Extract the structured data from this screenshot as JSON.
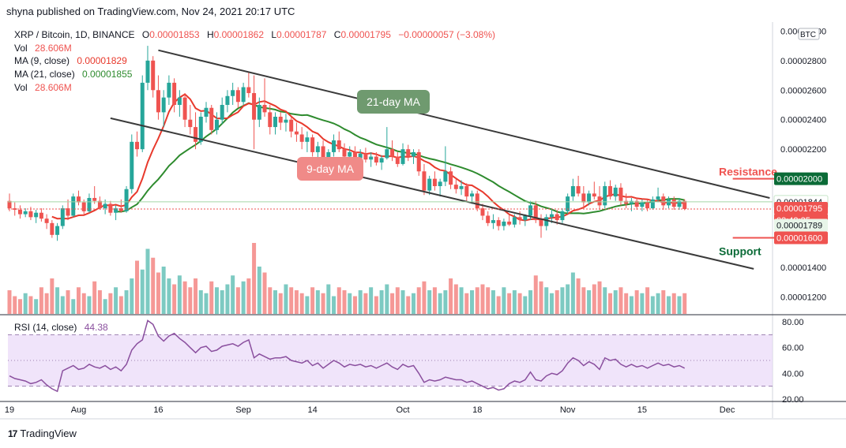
{
  "header": {
    "published": "shyna published on TradingView.com, Nov 24, 2021 20:17 UTC"
  },
  "legend": {
    "symbol": "XRP / Bitcoin, 1D, BINANCE",
    "ohlc": [
      {
        "k": "O",
        "v": "0.00001853"
      },
      {
        "k": "H",
        "v": "0.00001862"
      },
      {
        "k": "L",
        "v": "0.00001787"
      },
      {
        "k": "C",
        "v": "0.00001795"
      }
    ],
    "change": "−0.00000057 (−3.08%)",
    "vol_label": "Vol",
    "vol_value": "28.606M",
    "ma9_label": "MA (9, close)",
    "ma9_value": "0.00001829",
    "ma21_label": "MA (21, close)",
    "ma21_value": "0.00001855",
    "vol2_label": "Vol",
    "vol2_value": "28.606M",
    "rsi_label": "RSI (14, close)",
    "rsi_value": "44.38"
  },
  "annotations": {
    "ma21_callout": "21-day MA",
    "ma9_callout": "9-day MA",
    "resistance": "Resistance",
    "support": "Support"
  },
  "footer": {
    "brand": "TradingView"
  },
  "colors": {
    "up": "#26a69a",
    "down": "#ef5350",
    "ma9": "#e8392c",
    "ma21": "#2e8b2e",
    "rsi": "#8a4f9e",
    "rsi_band": "#e9d8f8",
    "trend": "#3a3a3a",
    "ma21_box": "#6f9a6f",
    "ma9_box": "#f08a88"
  },
  "chart_data": {
    "type": "candlestick",
    "currency": "BTC",
    "price_ticks": [
      "0.00001200",
      "0.00001400",
      "0.00001600",
      "0.00001800",
      "0.00002000",
      "0.00002200",
      "0.00002400",
      "0.00002600",
      "0.00002800",
      "0.00003000"
    ],
    "ylim": [
      1.085e-05,
      3.05e-05
    ],
    "rsi_ticks": [
      "20.00",
      "40.00",
      "60.00",
      "80.00"
    ],
    "rsi_band": [
      30,
      70
    ],
    "x_ticks": [
      {
        "day": 0,
        "label": "19"
      },
      {
        "day": 13,
        "label": "Aug"
      },
      {
        "day": 28,
        "label": "16"
      },
      {
        "day": 44,
        "label": "Sep"
      },
      {
        "day": 57,
        "label": "14"
      },
      {
        "day": 74,
        "label": "Oct"
      },
      {
        "day": 88,
        "label": "18"
      },
      {
        "day": 105,
        "label": "Nov"
      },
      {
        "day": 119,
        "label": "15"
      },
      {
        "day": 135,
        "label": "Dec"
      }
    ],
    "price_labels": [
      {
        "value": "0.00002000",
        "price": 2e-05,
        "color": "#0b6b37"
      },
      {
        "value": "0.00001844",
        "price": 1.844e-05,
        "color": "#ffffff",
        "text": "#131722"
      },
      {
        "value": "0.00001795",
        "price": 1.795e-05,
        "color": "#ef5350"
      },
      {
        "value": "03:42:35",
        "price": 1.735e-05,
        "color": "#ef5350"
      },
      {
        "value": "0.00001789",
        "price": 1.675e-05,
        "color": "#e8f5e9",
        "text": "#131722"
      },
      {
        "value": "0.00001600",
        "price": 1.6e-05,
        "color": "#ef5350"
      }
    ],
    "candles": [
      [
        1.85e-05,
        1.9e-05,
        1.78e-05,
        1.8e-05
      ],
      [
        1.8e-05,
        1.84e-05,
        1.75e-05,
        1.79e-05
      ],
      [
        1.79e-05,
        1.82e-05,
        1.73e-05,
        1.76e-05
      ],
      [
        1.76e-05,
        1.8e-05,
        1.74e-05,
        1.78e-05
      ],
      [
        1.78e-05,
        1.81e-05,
        1.72e-05,
        1.74e-05
      ],
      [
        1.74e-05,
        1.79e-05,
        1.7e-05,
        1.77e-05
      ],
      [
        1.77e-05,
        1.8e-05,
        1.71e-05,
        1.73e-05
      ],
      [
        1.73e-05,
        1.76e-05,
        1.66e-05,
        1.7e-05
      ],
      [
        1.7e-05,
        1.72e-05,
        1.6e-05,
        1.62e-05
      ],
      [
        1.62e-05,
        1.7e-05,
        1.58e-05,
        1.68e-05
      ],
      [
        1.68e-05,
        1.82e-05,
        1.66e-05,
        1.8e-05
      ],
      [
        1.8e-05,
        1.86e-05,
        1.72e-05,
        1.75e-05
      ],
      [
        1.75e-05,
        1.9e-05,
        1.74e-05,
        1.88e-05
      ],
      [
        1.88e-05,
        1.92e-05,
        1.82e-05,
        1.84e-05
      ],
      [
        1.84e-05,
        1.86e-05,
        1.76e-05,
        1.78e-05
      ],
      [
        1.78e-05,
        1.9e-05,
        1.77e-05,
        1.87e-05
      ],
      [
        1.87e-05,
        1.95e-05,
        1.83e-05,
        1.85e-05
      ],
      [
        1.85e-05,
        1.88e-05,
        1.79e-05,
        1.8e-05
      ],
      [
        1.8e-05,
        1.86e-05,
        1.76e-05,
        1.83e-05
      ],
      [
        1.83e-05,
        1.85e-05,
        1.75e-05,
        1.77e-05
      ],
      [
        1.77e-05,
        1.82e-05,
        1.72e-05,
        1.8e-05
      ],
      [
        1.8e-05,
        1.86e-05,
        1.77e-05,
        1.78e-05
      ],
      [
        1.78e-05,
        1.95e-05,
        1.77e-05,
        1.93e-05
      ],
      [
        1.93e-05,
        2.3e-05,
        1.9e-05,
        2.25e-05
      ],
      [
        2.25e-05,
        2.32e-05,
        2.15e-05,
        2.2e-05
      ],
      [
        2.2e-05,
        2.7e-05,
        2.18e-05,
        2.65e-05
      ],
      [
        2.65e-05,
        2.9e-05,
        2.6e-05,
        2.8e-05
      ],
      [
        2.8e-05,
        2.83e-05,
        2.55e-05,
        2.6e-05
      ],
      [
        2.6e-05,
        2.7e-05,
        2.4e-05,
        2.45e-05
      ],
      [
        2.45e-05,
        2.6e-05,
        2.35e-05,
        2.55e-05
      ],
      [
        2.55e-05,
        2.7e-05,
        2.5e-05,
        2.65e-05
      ],
      [
        2.65e-05,
        2.68e-05,
        2.45e-05,
        2.5e-05
      ],
      [
        2.5e-05,
        2.6e-05,
        2.42e-05,
        2.55e-05
      ],
      [
        2.55e-05,
        2.58e-05,
        2.35e-05,
        2.4e-05
      ],
      [
        2.4e-05,
        2.5e-05,
        2.3e-05,
        2.35e-05
      ],
      [
        2.35e-05,
        2.45e-05,
        2.2e-05,
        2.25e-05
      ],
      [
        2.25e-05,
        2.45e-05,
        2.23e-05,
        2.42e-05
      ],
      [
        2.42e-05,
        2.52e-05,
        2.38e-05,
        2.48e-05
      ],
      [
        2.48e-05,
        2.5e-05,
        2.3e-05,
        2.33e-05
      ],
      [
        2.33e-05,
        2.45e-05,
        2.3e-05,
        2.4e-05
      ],
      [
        2.4e-05,
        2.55e-05,
        2.37e-05,
        2.5e-05
      ],
      [
        2.5e-05,
        2.6e-05,
        2.45e-05,
        2.56e-05
      ],
      [
        2.56e-05,
        2.65e-05,
        2.5e-05,
        2.6e-05
      ],
      [
        2.6e-05,
        2.62e-05,
        2.48e-05,
        2.52e-05
      ],
      [
        2.52e-05,
        2.65e-05,
        2.5e-05,
        2.62e-05
      ],
      [
        2.62e-05,
        2.72e-05,
        2.55e-05,
        2.58e-05
      ],
      [
        2.58e-05,
        2.7e-05,
        2.2e-05,
        2.4e-05
      ],
      [
        2.4e-05,
        2.55e-05,
        2.35e-05,
        2.5e-05
      ],
      [
        2.5e-05,
        2.68e-05,
        2.42e-05,
        2.45e-05
      ],
      [
        2.45e-05,
        2.5e-05,
        2.3e-05,
        2.35e-05
      ],
      [
        2.35e-05,
        2.45e-05,
        2.3e-05,
        2.42e-05
      ],
      [
        2.42e-05,
        2.45e-05,
        2.33e-05,
        2.38e-05
      ],
      [
        2.38e-05,
        2.44e-05,
        2.32e-05,
        2.4e-05
      ],
      [
        2.4e-05,
        2.42e-05,
        2.28e-05,
        2.32e-05
      ],
      [
        2.32e-05,
        2.38e-05,
        2.25e-05,
        2.3e-05
      ],
      [
        2.3e-05,
        2.35e-05,
        2.2e-05,
        2.25e-05
      ],
      [
        2.25e-05,
        2.32e-05,
        2.18e-05,
        2.28e-05
      ],
      [
        2.28e-05,
        2.3e-05,
        2.15e-05,
        2.18e-05
      ],
      [
        2.18e-05,
        2.25e-05,
        2.12e-05,
        2.22e-05
      ],
      [
        2.22e-05,
        2.26e-05,
        2.08e-05,
        2.1e-05
      ],
      [
        2.1e-05,
        2.2e-05,
        2.06e-05,
        2.18e-05
      ],
      [
        2.18e-05,
        2.3e-05,
        2.15e-05,
        2.26e-05
      ],
      [
        2.26e-05,
        2.32e-05,
        2.18e-05,
        2.2e-05
      ],
      [
        2.2e-05,
        2.24e-05,
        2.12e-05,
        2.15e-05
      ],
      [
        2.15e-05,
        2.22e-05,
        2.1e-05,
        2.18e-05
      ],
      [
        2.18e-05,
        2.22e-05,
        2.12e-05,
        2.14e-05
      ],
      [
        2.14e-05,
        2.2e-05,
        2.1e-05,
        2.17e-05
      ],
      [
        2.17e-05,
        2.21e-05,
        2.11e-05,
        2.13e-05
      ],
      [
        2.13e-05,
        2.18e-05,
        2.08e-05,
        2.15e-05
      ],
      [
        2.15e-05,
        2.18e-05,
        2.09e-05,
        2.11e-05
      ],
      [
        2.11e-05,
        2.16e-05,
        2.06e-05,
        2.14e-05
      ],
      [
        2.14e-05,
        2.35e-05,
        2.13e-05,
        2.2e-05
      ],
      [
        2.2e-05,
        2.26e-05,
        2.12e-05,
        2.15e-05
      ],
      [
        2.15e-05,
        2.18e-05,
        2.08e-05,
        2.1e-05
      ],
      [
        2.1e-05,
        2.24e-05,
        2.09e-05,
        2.2e-05
      ],
      [
        2.2e-05,
        2.23e-05,
        2.12e-05,
        2.15e-05
      ],
      [
        2.15e-05,
        2.2e-05,
        2.1e-05,
        2.18e-05
      ],
      [
        2.18e-05,
        2.2e-05,
        2.02e-05,
        2.05e-05
      ],
      [
        2.05e-05,
        2.1e-05,
        1.89e-05,
        1.92e-05
      ],
      [
        1.92e-05,
        2.02e-05,
        1.89e-05,
        2e-05
      ],
      [
        2e-05,
        2.05e-05,
        1.92e-05,
        1.95e-05
      ],
      [
        1.95e-05,
        2e-05,
        1.88e-05,
        1.98e-05
      ],
      [
        1.98e-05,
        2.22e-05,
        1.95e-05,
        2.05e-05
      ],
      [
        2.05e-05,
        2.08e-05,
        1.93e-05,
        1.96e-05
      ],
      [
        1.96e-05,
        2e-05,
        1.9e-05,
        1.93e-05
      ],
      [
        1.93e-05,
        1.99e-05,
        1.89e-05,
        1.95e-05
      ],
      [
        1.95e-05,
        1.97e-05,
        1.85e-05,
        1.88e-05
      ],
      [
        1.88e-05,
        1.92e-05,
        1.83e-05,
        1.9e-05
      ],
      [
        1.9e-05,
        1.92e-05,
        1.78e-05,
        1.8e-05
      ],
      [
        1.8e-05,
        1.83e-05,
        1.72e-05,
        1.75e-05
      ],
      [
        1.75e-05,
        1.78e-05,
        1.68e-05,
        1.7e-05
      ],
      [
        1.7e-05,
        1.76e-05,
        1.66e-05,
        1.72e-05
      ],
      [
        1.72e-05,
        1.74e-05,
        1.65e-05,
        1.68e-05
      ],
      [
        1.68e-05,
        1.73e-05,
        1.65e-05,
        1.71e-05
      ],
      [
        1.71e-05,
        1.76e-05,
        1.68e-05,
        1.69e-05
      ],
      [
        1.69e-05,
        1.76e-05,
        1.67e-05,
        1.74e-05
      ],
      [
        1.74e-05,
        1.78e-05,
        1.69e-05,
        1.72e-05
      ],
      [
        1.72e-05,
        1.76e-05,
        1.68e-05,
        1.75e-05
      ],
      [
        1.75e-05,
        1.85e-05,
        1.72e-05,
        1.82e-05
      ],
      [
        1.82e-05,
        1.85e-05,
        1.7e-05,
        1.72e-05
      ],
      [
        1.72e-05,
        1.76e-05,
        1.6e-05,
        1.68e-05
      ],
      [
        1.68e-05,
        1.76e-05,
        1.65e-05,
        1.74e-05
      ],
      [
        1.74e-05,
        1.8e-05,
        1.7e-05,
        1.76e-05
      ],
      [
        1.76e-05,
        1.79e-05,
        1.69e-05,
        1.72e-05
      ],
      [
        1.72e-05,
        1.8e-05,
        1.7e-05,
        1.78e-05
      ],
      [
        1.78e-05,
        1.9e-05,
        1.76e-05,
        1.88e-05
      ],
      [
        1.88e-05,
        2e-05,
        1.85e-05,
        1.95e-05
      ],
      [
        1.95e-05,
        2.02e-05,
        1.88e-05,
        1.9e-05
      ],
      [
        1.9e-05,
        1.95e-05,
        1.8e-05,
        1.84e-05
      ],
      [
        1.84e-05,
        1.92e-05,
        1.82e-05,
        1.9e-05
      ],
      [
        1.9e-05,
        1.98e-05,
        1.86e-05,
        1.88e-05
      ],
      [
        1.88e-05,
        1.95e-05,
        1.79e-05,
        1.82e-05
      ],
      [
        1.82e-05,
        1.98e-05,
        1.8e-05,
        1.95e-05
      ],
      [
        1.95e-05,
        1.99e-05,
        1.86e-05,
        1.88e-05
      ],
      [
        1.88e-05,
        1.96e-05,
        1.85e-05,
        1.94e-05
      ],
      [
        1.94e-05,
        1.97e-05,
        1.82e-05,
        1.85e-05
      ],
      [
        1.85e-05,
        1.9e-05,
        1.8e-05,
        1.83e-05
      ],
      [
        1.83e-05,
        1.87e-05,
        1.78e-05,
        1.85e-05
      ],
      [
        1.85e-05,
        1.87e-05,
        1.79e-05,
        1.81e-05
      ],
      [
        1.81e-05,
        1.86e-05,
        1.78e-05,
        1.84e-05
      ],
      [
        1.84e-05,
        1.86e-05,
        1.78e-05,
        1.8e-05
      ],
      [
        1.8e-05,
        1.88e-05,
        1.79e-05,
        1.86e-05
      ],
      [
        1.86e-05,
        1.94e-05,
        1.84e-05,
        1.88e-05
      ],
      [
        1.88e-05,
        1.9e-05,
        1.79e-05,
        1.82e-05
      ],
      [
        1.82e-05,
        1.88e-05,
        1.8e-05,
        1.86e-05
      ],
      [
        1.86e-05,
        1.88e-05,
        1.79e-05,
        1.81e-05
      ],
      [
        1.81e-05,
        1.87e-05,
        1.79e-05,
        1.85e-05
      ],
      [
        1.85e-05,
        1.862e-05,
        1.787e-05,
        1.795e-05
      ]
    ],
    "volume": [
      8,
      6,
      5,
      7,
      6,
      5,
      9,
      7,
      12,
      9,
      6,
      8,
      5,
      9,
      7,
      6,
      11,
      8,
      5,
      7,
      9,
      6,
      8,
      12,
      18,
      15,
      22,
      19,
      14,
      16,
      12,
      10,
      13,
      11,
      9,
      12,
      8,
      7,
      11,
      9,
      8,
      10,
      13,
      9,
      11,
      12,
      24,
      16,
      14,
      9,
      8,
      7,
      10,
      9,
      8,
      7,
      6,
      9,
      8,
      7,
      10,
      6,
      9,
      8,
      7,
      6,
      8,
      7,
      9,
      6,
      8,
      10,
      7,
      9,
      8,
      6,
      7,
      9,
      11,
      8,
      9,
      7,
      8,
      12,
      10,
      9,
      7,
      8,
      9,
      10,
      9,
      8,
      6,
      9,
      7,
      8,
      7,
      6,
      8,
      13,
      11,
      9,
      7,
      8,
      9,
      10,
      14,
      12,
      9,
      8,
      10,
      11,
      9,
      7,
      8,
      9,
      7,
      6,
      8,
      7,
      9,
      6,
      7,
      8,
      6,
      7,
      6,
      7
    ],
    "rsi": [
      38,
      36,
      35,
      34,
      32,
      33,
      35,
      31,
      28,
      26,
      42,
      44,
      46,
      43,
      44,
      47,
      45,
      44,
      46,
      43,
      45,
      42,
      47,
      58,
      63,
      66,
      81,
      78,
      69,
      65,
      69,
      71,
      67,
      64,
      60,
      56,
      60,
      61,
      57,
      58,
      61,
      62,
      63,
      61,
      64,
      66,
      52,
      55,
      53,
      51,
      52,
      52,
      53,
      50,
      49,
      48,
      50,
      46,
      48,
      44,
      47,
      50,
      48,
      45,
      47,
      46,
      47,
      45,
      46,
      44,
      46,
      48,
      45,
      43,
      47,
      45,
      46,
      40,
      33,
      35,
      34,
      35,
      37,
      36,
      35,
      35,
      33,
      34,
      32,
      30,
      28,
      29,
      27,
      28,
      32,
      34,
      33,
      35,
      41,
      35,
      34,
      38,
      40,
      39,
      42,
      48,
      52,
      50,
      46,
      49,
      47,
      43,
      52,
      50,
      51,
      47,
      45,
      47,
      45,
      46,
      44,
      46,
      48,
      46,
      47,
      45,
      46,
      44
    ],
    "ma21_callout_point": {
      "day": 80,
      "price": 2.44e-05
    },
    "ma9_callout_point": {
      "day": 73,
      "price": 2.145e-05
    },
    "trendlines": [
      {
        "from": {
          "day": 28,
          "price": 2.87e-05
        },
        "to": {
          "day": 143,
          "price": 1.87e-05
        }
      },
      {
        "from": {
          "day": 19,
          "price": 2.41e-05
        },
        "to": {
          "day": 140,
          "price": 1.39e-05
        }
      }
    ],
    "levels": [
      {
        "name": "resistance",
        "price": 2e-05,
        "from_day": 142,
        "to_day": 148
      },
      {
        "name": "support",
        "price": 1.6e-05,
        "from_day": 142,
        "to_day": 148
      },
      {
        "name": "last",
        "price": 1.795e-05,
        "from_day": 0,
        "to_day": 148,
        "dashed": true
      }
    ]
  }
}
